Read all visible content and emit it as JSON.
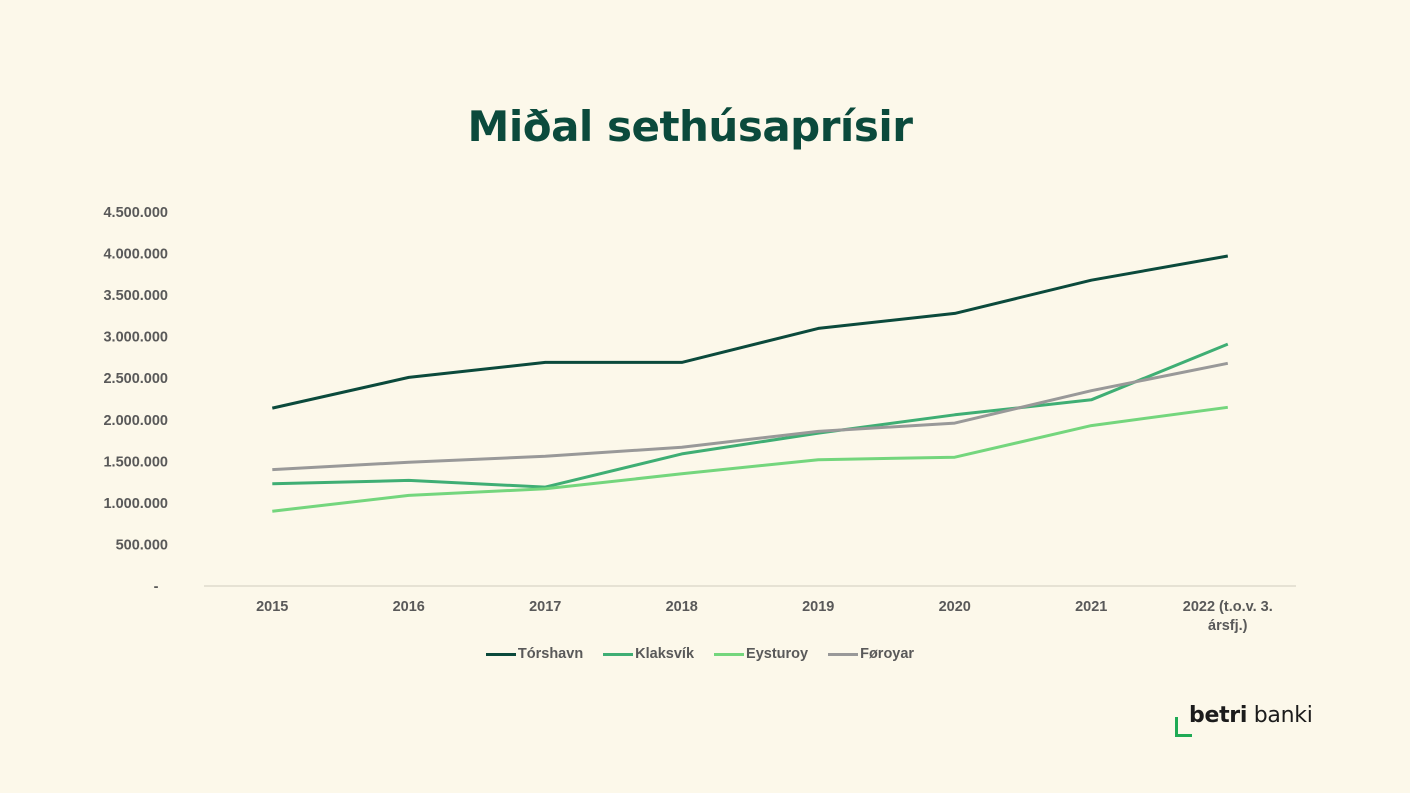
{
  "chart_data": {
    "type": "line",
    "title": "Miðal sethúsaprísir",
    "xlabel": "",
    "ylabel": "",
    "categories": [
      "2015",
      "2016",
      "2017",
      "2018",
      "2019",
      "2020",
      "2021",
      "2022 (t.o.v. 3. ársfj.)"
    ],
    "category_lines": [
      [
        "2015"
      ],
      [
        "2016"
      ],
      [
        "2017"
      ],
      [
        "2018"
      ],
      [
        "2019"
      ],
      [
        "2020"
      ],
      [
        "2021"
      ],
      [
        "2022 (t.o.v. 3.",
        "ársfj.)"
      ]
    ],
    "ylim": [
      0,
      4500000
    ],
    "yticks": [
      0,
      500000,
      1000000,
      1500000,
      2000000,
      2500000,
      3000000,
      3500000,
      4000000,
      4500000
    ],
    "ytick_labels": [
      "-",
      "500.000",
      "1.000.000",
      "1.500.000",
      "2.000.000",
      "2.500.000",
      "3.000.000",
      "3.500.000",
      "4.000.000",
      "4.500.000"
    ],
    "grid": false,
    "legend_position": "bottom",
    "series": [
      {
        "name": "Tórshavn",
        "color": "#0b4a3c",
        "values": [
          2140000,
          2510000,
          2690000,
          2690000,
          3100000,
          3280000,
          3680000,
          3970000
        ]
      },
      {
        "name": "Klaksvík",
        "color": "#3fae74",
        "values": [
          1230000,
          1270000,
          1190000,
          1590000,
          1840000,
          2060000,
          2240000,
          2910000
        ]
      },
      {
        "name": "Eysturoy",
        "color": "#74d67d",
        "values": [
          900000,
          1090000,
          1170000,
          1350000,
          1520000,
          1550000,
          1930000,
          2150000
        ]
      },
      {
        "name": "Føroyar",
        "color": "#999999",
        "values": [
          1400000,
          1490000,
          1560000,
          1670000,
          1860000,
          1960000,
          2350000,
          2680000
        ]
      }
    ]
  },
  "branding": {
    "logo_bold": "betri",
    "logo_regular": " banki",
    "accent_color": "#1faa55"
  }
}
